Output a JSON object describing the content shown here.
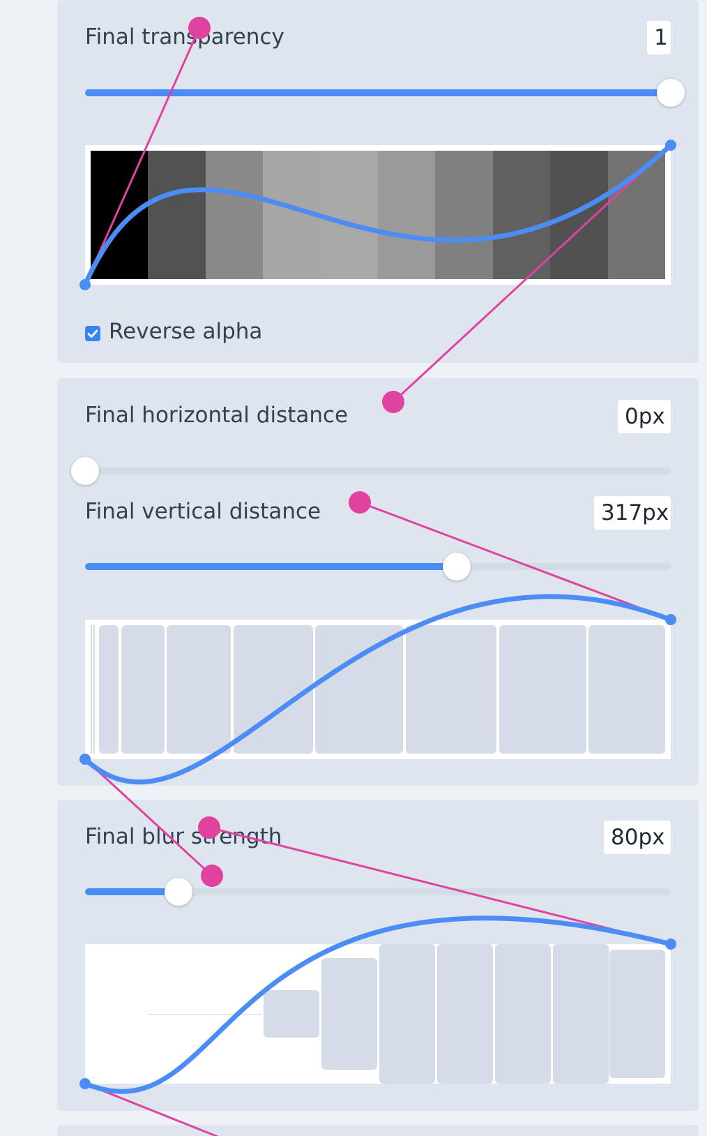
{
  "transparency": {
    "label": "Final transparency",
    "value": "1",
    "slider_fraction": 1.0,
    "reverse_alpha_label": "Reverse alpha",
    "reverse_alpha_checked": true,
    "swatches": [
      "#000000",
      "#525252",
      "#8a8a8a",
      "#a6a6a6",
      "#a8a8a8",
      "#9a9a9a",
      "#808080",
      "#606060",
      "#515151",
      "#727272"
    ]
  },
  "horizontal": {
    "label": "Final horizontal distance",
    "value": "0px",
    "slider_fraction": 0.0
  },
  "vertical": {
    "label": "Final vertical distance",
    "value": "317px",
    "slider_fraction": 0.634
  },
  "blur": {
    "label": "Final blur strength",
    "value": "80px",
    "slider_fraction": 0.16
  },
  "colors": {
    "accent": "#4c8df5",
    "handle": "#e0439f",
    "panel": "#dfe5ee",
    "track": "#d3dbe7"
  },
  "icons": {
    "checkbox": "check-icon",
    "curve_handle": "bezier-handle-icon"
  }
}
